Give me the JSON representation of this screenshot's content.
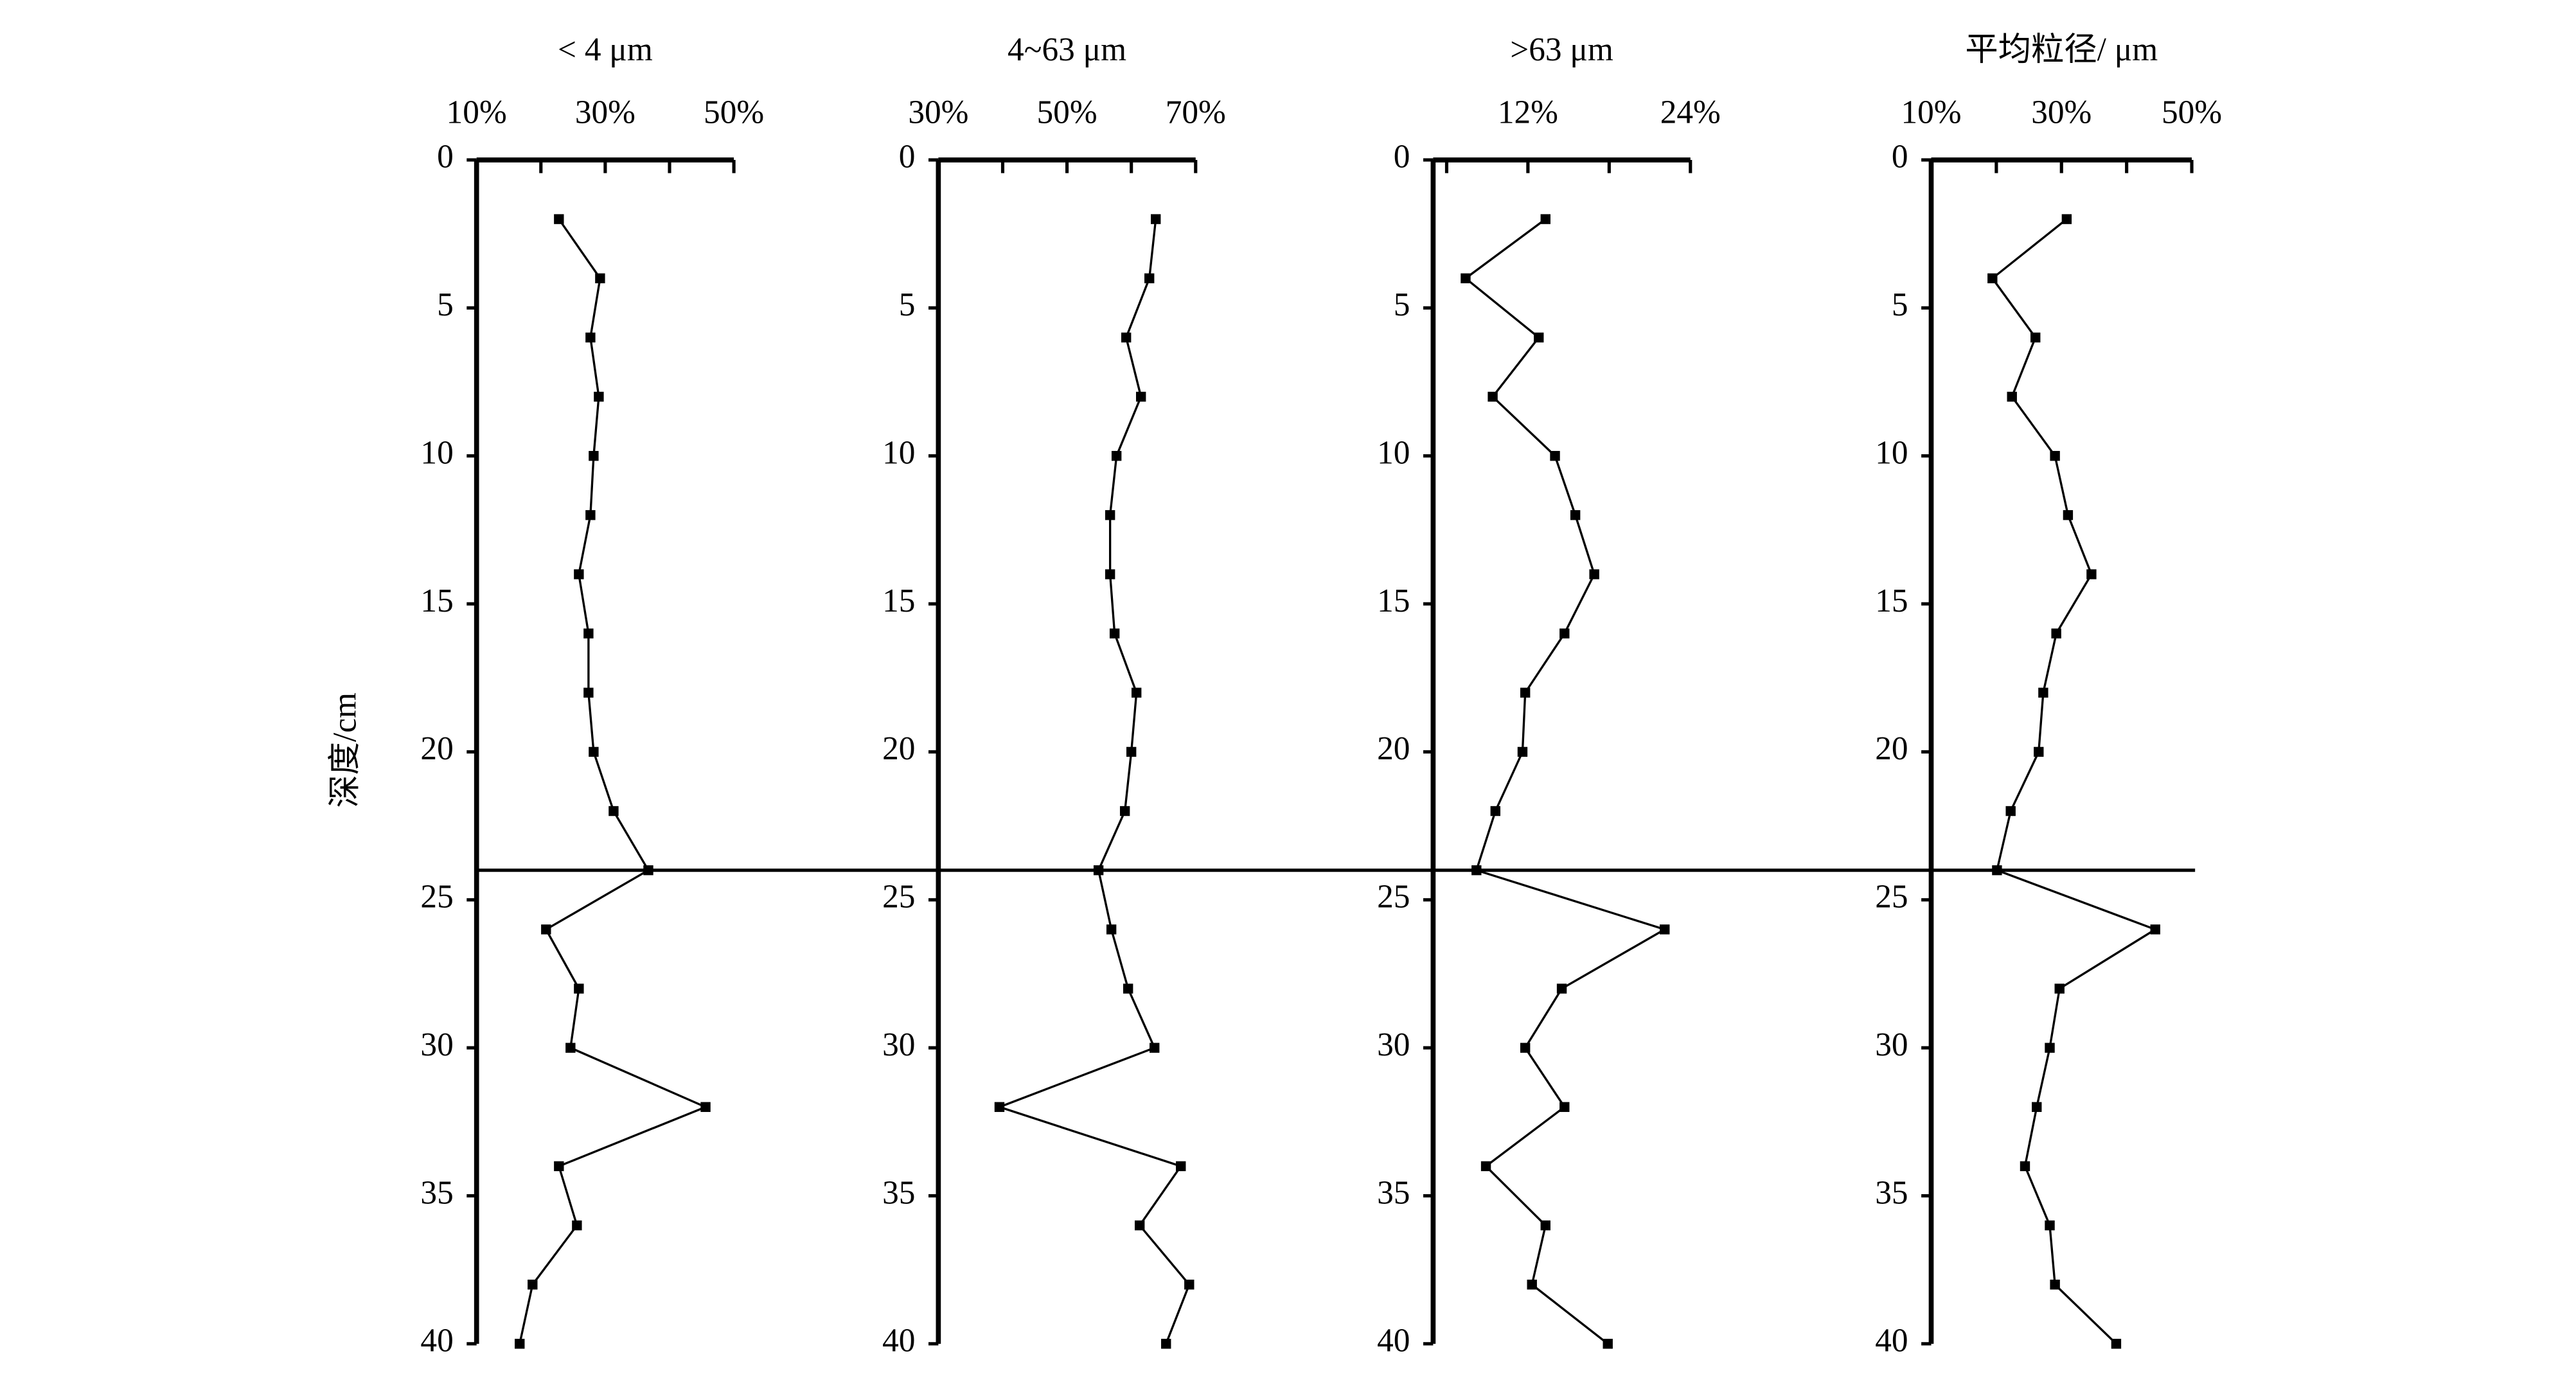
{
  "chart_data": [
    {
      "type": "line",
      "title": "< 4 μm",
      "y_label": "深度/cm",
      "depth": [
        2,
        4,
        6,
        8,
        10,
        12,
        14,
        16,
        18,
        20,
        22,
        24,
        26,
        28,
        30,
        32,
        34,
        36,
        38,
        40
      ],
      "values": [
        22.8,
        29.2,
        27.7,
        29,
        28.2,
        27.7,
        25.9,
        27.4,
        27.4,
        28.2,
        31.3,
        36.7,
        20.8,
        25.9,
        24.6,
        45.6,
        22.8,
        25.6,
        18.7,
        16.7
      ],
      "xlim": [
        10,
        50
      ],
      "xticks": [
        {
          "value": 10,
          "label": "10%"
        },
        {
          "value": 30,
          "label": "30%"
        },
        {
          "value": 50,
          "label": "50%"
        }
      ],
      "xminorticks": [
        20,
        40
      ],
      "ylim": [
        0,
        40
      ],
      "yticks": [
        0,
        5,
        10,
        15,
        20,
        25,
        30,
        35,
        40
      ],
      "color": "#000000"
    },
    {
      "type": "line",
      "title": "4~63 μm",
      "depth": [
        2,
        4,
        6,
        8,
        10,
        12,
        14,
        16,
        18,
        20,
        22,
        24,
        26,
        28,
        30,
        32,
        34,
        36,
        38,
        40
      ],
      "values": [
        63.8,
        62.8,
        59.2,
        61.5,
        57.7,
        56.7,
        56.7,
        57.4,
        60.8,
        60,
        59,
        54.9,
        56.9,
        59.5,
        63.6,
        39.5,
        67.7,
        61.3,
        69,
        65.4
      ],
      "xlim": [
        30,
        70
      ],
      "xticks": [
        {
          "value": 30,
          "label": "30%"
        },
        {
          "value": 50,
          "label": "50%"
        },
        {
          "value": 70,
          "label": "70%"
        }
      ],
      "xminorticks": [
        40,
        60
      ],
      "ylim": [
        0,
        40
      ],
      "yticks": [
        0,
        5,
        10,
        15,
        20,
        25,
        30,
        35,
        40
      ],
      "color": "#000000"
    },
    {
      "type": "line",
      "title": ">63 μm",
      "depth": [
        2,
        4,
        6,
        8,
        10,
        12,
        14,
        16,
        18,
        20,
        22,
        24,
        26,
        28,
        30,
        32,
        34,
        36,
        38,
        40
      ],
      "values": [
        13.3,
        7.4,
        12.8,
        9.4,
        14,
        15.5,
        16.9,
        14.7,
        11.8,
        11.6,
        9.6,
        8.2,
        22.1,
        14.5,
        11.8,
        14.7,
        8.9,
        13.3,
        12.3,
        17.9
      ],
      "xlim": [
        5,
        24
      ],
      "xticks": [
        {
          "value": 12,
          "label": "12%"
        },
        {
          "value": 24,
          "label": "24%"
        }
      ],
      "xminorticks": [
        6,
        18
      ],
      "ylim": [
        0,
        40
      ],
      "yticks": [
        0,
        5,
        10,
        15,
        20,
        25,
        30,
        35,
        40
      ],
      "color": "#000000"
    },
    {
      "type": "line",
      "title": "平均粒径/ μm",
      "depth": [
        2,
        4,
        6,
        8,
        10,
        12,
        14,
        16,
        18,
        20,
        22,
        24,
        26,
        28,
        30,
        32,
        34,
        36,
        38,
        40
      ],
      "values": [
        30.8,
        19.4,
        26,
        22.4,
        29,
        31,
        34.6,
        29.2,
        27.2,
        26.5,
        22.2,
        20.1,
        44.4,
        29.7,
        28.2,
        26.2,
        24.4,
        28.2,
        29,
        38.4
      ],
      "xlim": [
        10,
        50
      ],
      "xticks": [
        {
          "value": 10,
          "label": "10%"
        },
        {
          "value": 30,
          "label": "30%"
        },
        {
          "value": 50,
          "label": "50%"
        }
      ],
      "xminorticks": [
        20,
        40
      ],
      "ylim": [
        0,
        40
      ],
      "yticks": [
        0,
        5,
        10,
        15,
        20,
        25,
        30,
        35,
        40
      ],
      "color": "#000000"
    }
  ],
  "boundary_depth": 24
}
